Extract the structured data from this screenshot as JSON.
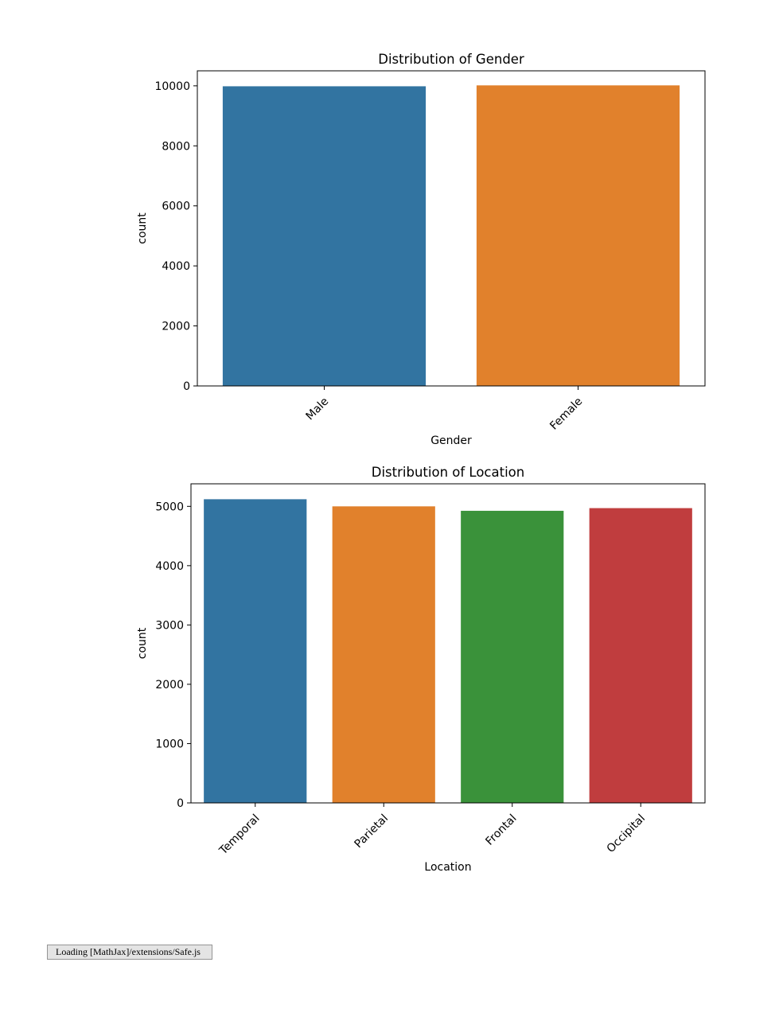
{
  "chart_data": [
    {
      "type": "bar",
      "title": "Distribution of Gender",
      "xlabel": "Gender",
      "ylabel": "count",
      "categories": [
        "Male",
        "Female"
      ],
      "values": [
        9985,
        10015
      ],
      "colors": [
        "#3274a1",
        "#e1812c"
      ],
      "ylim": [
        0,
        10500
      ],
      "yticks": [
        0,
        2000,
        4000,
        6000,
        8000,
        10000
      ],
      "grid": false,
      "legend": "none"
    },
    {
      "type": "bar",
      "title": "Distribution of Location",
      "xlabel": "Location",
      "ylabel": "count",
      "categories": [
        "Temporal",
        "Parietal",
        "Frontal",
        "Occipital"
      ],
      "values": [
        5120,
        5000,
        4925,
        4970
      ],
      "colors": [
        "#3274a1",
        "#e1812c",
        "#3a923a",
        "#c03d3e"
      ],
      "ylim": [
        0,
        5380
      ],
      "yticks": [
        0,
        1000,
        2000,
        3000,
        4000,
        5000
      ],
      "grid": false,
      "legend": "none"
    }
  ],
  "status": {
    "loading_text": "Loading [MathJax]/extensions/Safe.js"
  }
}
